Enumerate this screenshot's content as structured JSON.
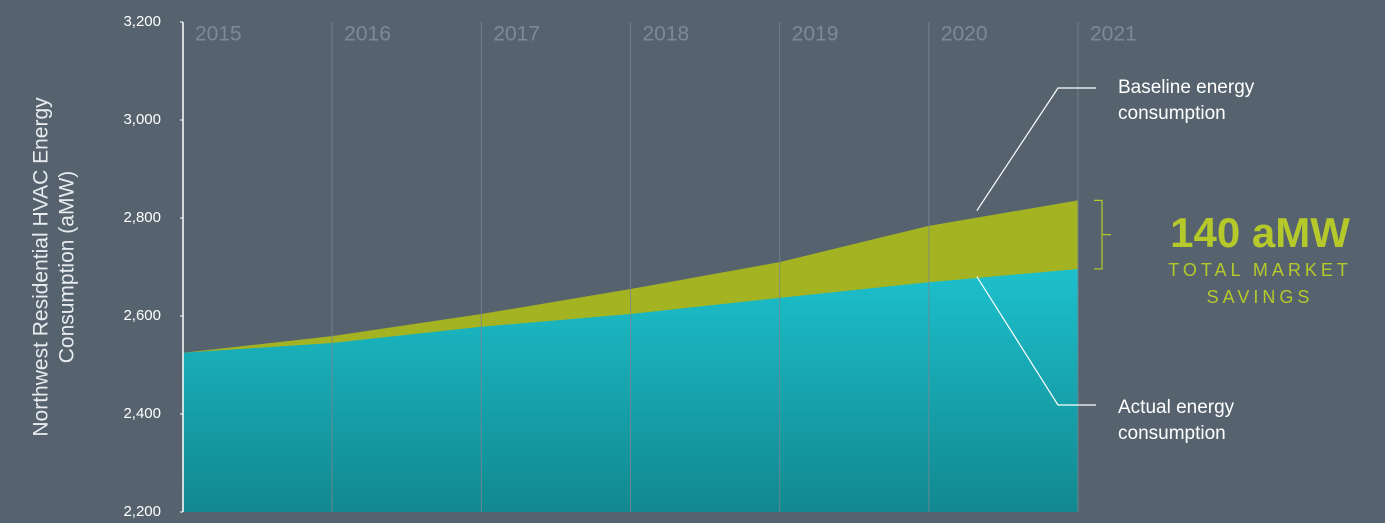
{
  "chart_data": {
    "type": "area",
    "ylabel": [
      "Northwest Residential HVAC Energy",
      "Consumption (aMW)"
    ],
    "x": [
      2015,
      2016,
      2017,
      2018,
      2019,
      2020,
      2021
    ],
    "xticks": [
      2015,
      2016,
      2017,
      2018,
      2019,
      2020,
      2021
    ],
    "xlim": [
      2015,
      2021
    ],
    "series": [
      {
        "name": "Baseline energy consumption",
        "color": "#a3b322",
        "values": [
          2525,
          2559,
          2604,
          2655,
          2710,
          2784,
          2836
        ]
      },
      {
        "name": "Actual energy consumption",
        "color": "#1ab8c4",
        "values": [
          2525,
          2545,
          2578,
          2604,
          2637,
          2669,
          2696
        ]
      }
    ],
    "ylim": [
      2200,
      3200
    ],
    "yticks": [
      {
        "value": 2200,
        "label": "2,200"
      },
      {
        "value": 2400,
        "label": "2,400"
      },
      {
        "value": 2600,
        "label": "2,600"
      },
      {
        "value": 2800,
        "label": "2,800"
      },
      {
        "value": 3000,
        "label": "3,000"
      },
      {
        "value": 3200,
        "label": "3,200"
      }
    ],
    "grid": true,
    "annotations": {
      "savings_value": "140 aMW",
      "savings_label": [
        "TOTAL MARKET",
        "SAVINGS"
      ]
    }
  }
}
